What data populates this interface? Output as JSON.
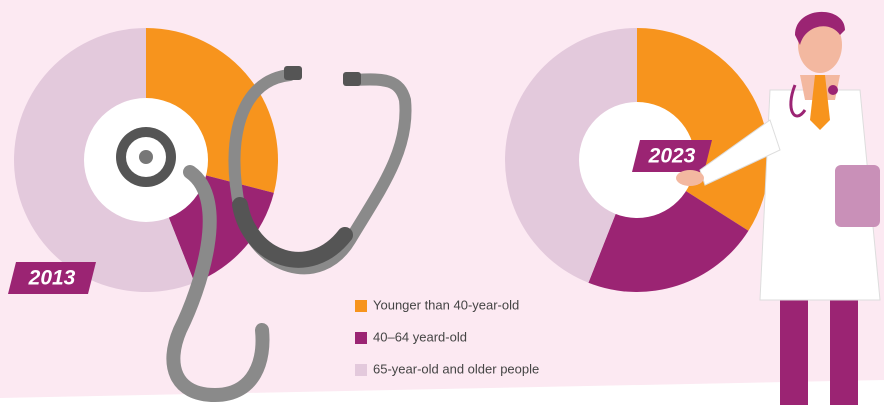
{
  "chart_data": {
    "type": "pie",
    "categories": [
      "Younger than 40-year-old",
      "40–64 yeard-old",
      "65-year-old and older people"
    ],
    "colors": [
      "#f7941d",
      "#9b2473",
      "#e3c9dc"
    ],
    "series": [
      {
        "name": "2013",
        "values": [
          29,
          15,
          56
        ]
      },
      {
        "name": "2023",
        "values": [
          34,
          22,
          44
        ]
      }
    ]
  }
}
